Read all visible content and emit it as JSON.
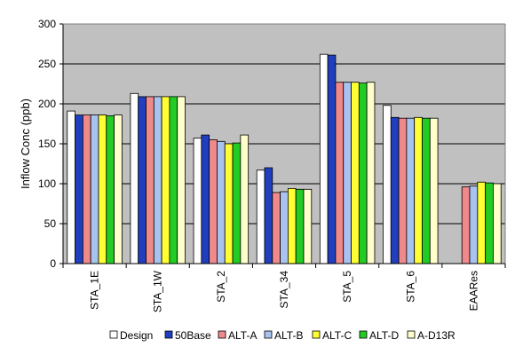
{
  "chart_data": {
    "type": "bar",
    "ylabel": "Inflow Conc (ppb)",
    "ylim": [
      0,
      300
    ],
    "yticks": [
      0,
      50,
      100,
      150,
      200,
      250,
      300
    ],
    "categories": [
      "STA_1E",
      "STA_1W",
      "STA_2",
      "STA_34",
      "STA_5",
      "STA_6",
      "EAARes"
    ],
    "series": [
      {
        "name": "Design",
        "color": "#ffffff",
        "values": [
          191,
          213,
          157,
          117,
          262,
          198,
          null
        ]
      },
      {
        "name": "50Base",
        "color": "#1f3fbf",
        "values": [
          186,
          209,
          161,
          120,
          261,
          183,
          null
        ]
      },
      {
        "name": "ALT-A",
        "color": "#f08a8a",
        "values": [
          186,
          209,
          155,
          89,
          227,
          182,
          96
        ]
      },
      {
        "name": "ALT-B",
        "color": "#a9c3f0",
        "values": [
          186,
          209,
          153,
          90,
          227,
          182,
          97
        ]
      },
      {
        "name": "ALT-C",
        "color": "#ffff33",
        "values": [
          186,
          209,
          150,
          94,
          227,
          183,
          102
        ]
      },
      {
        "name": "ALT-D",
        "color": "#22cc22",
        "values": [
          185,
          209,
          151,
          93,
          226,
          182,
          101
        ]
      },
      {
        "name": "A-D13R",
        "color": "#ffffcc",
        "values": [
          186,
          209,
          161,
          93,
          227,
          182,
          100
        ]
      }
    ],
    "plot_background": "#c0c0c0",
    "grid": true,
    "legend_position": "bottom"
  }
}
